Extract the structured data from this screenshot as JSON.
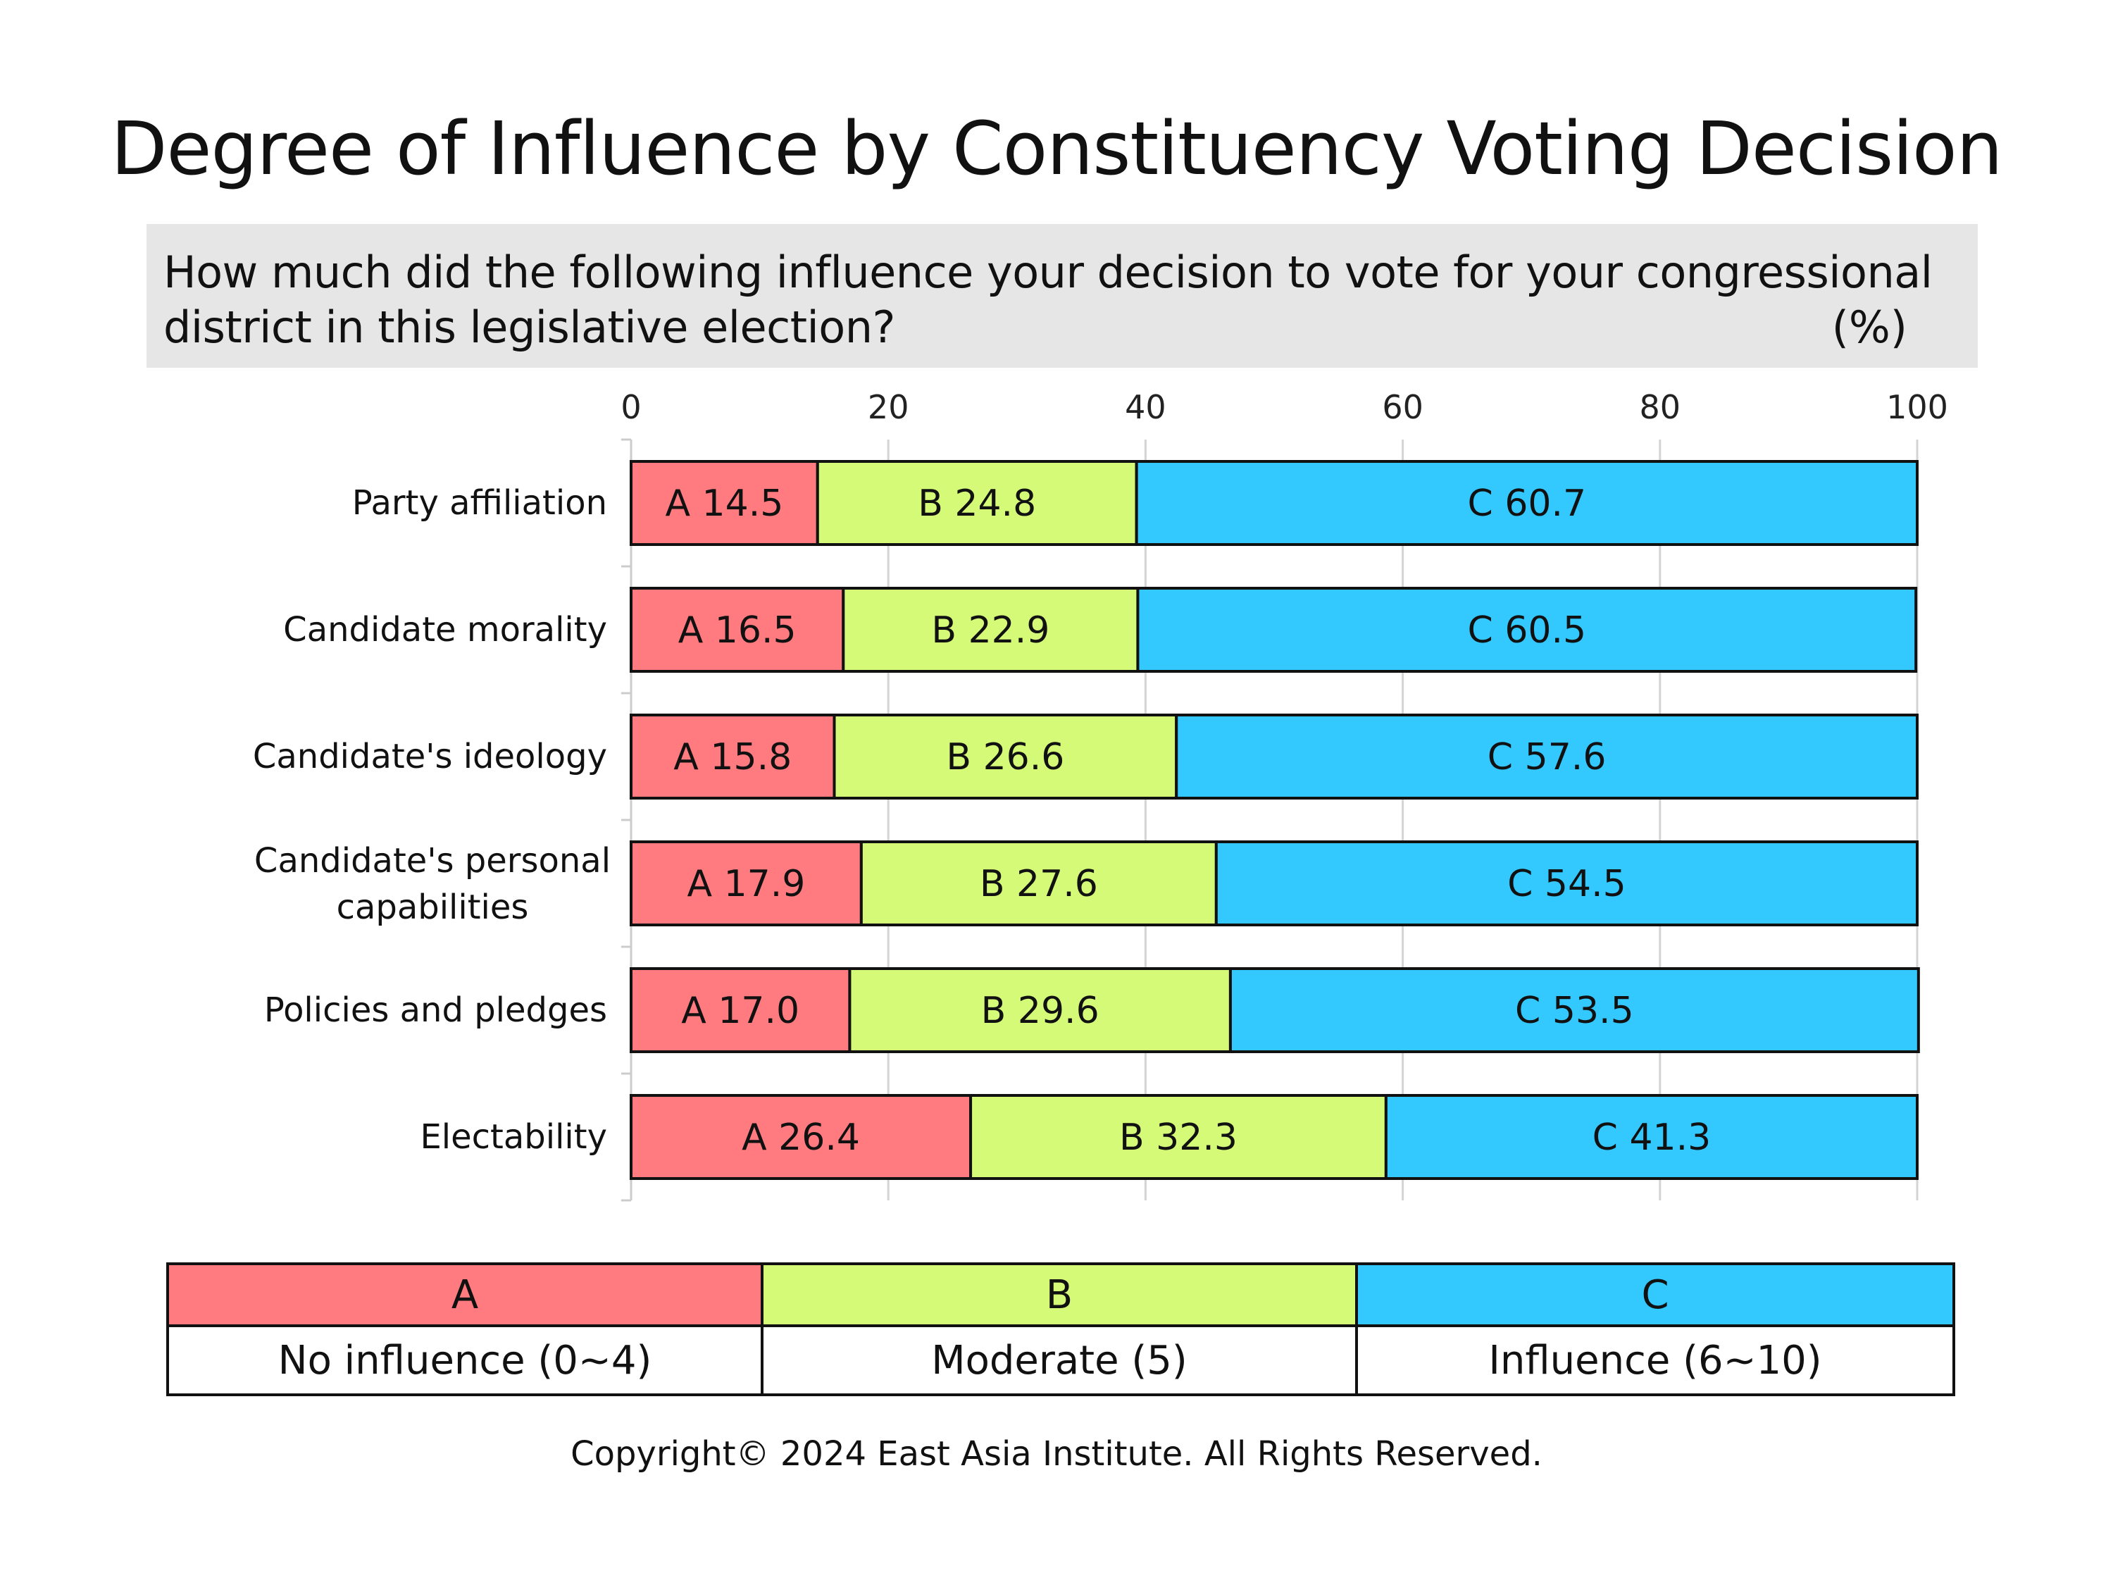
{
  "title": "Degree of Influence by Constituency Voting Decision",
  "question": "How much did the following influence your decision to vote for your congressional district in this legislative election?",
  "unit_label": "(%)",
  "legend": [
    {
      "key": "A",
      "label": "No influence (0~4)",
      "color": "#ff7b80"
    },
    {
      "key": "B",
      "label": "Moderate (5)",
      "color": "#d4fa78"
    },
    {
      "key": "C",
      "label": "Influence (6~10)",
      "color": "#33c8fe"
    }
  ],
  "footer": "Copyright© 2024 East Asia Institute. All Rights Reserved.",
  "chart_data": {
    "type": "bar",
    "orientation": "horizontal",
    "stacked": true,
    "categories": [
      "Party affiliation",
      "Candidate morality",
      "Candidate's ideology",
      "Candidate's personal capabilities",
      "Policies and pledges",
      "Electability"
    ],
    "series": [
      {
        "name": "A",
        "color": "#ff7b80",
        "values": [
          14.5,
          16.5,
          15.8,
          17.9,
          17.0,
          26.4
        ]
      },
      {
        "name": "B",
        "color": "#d4fa78",
        "values": [
          24.8,
          22.9,
          26.6,
          27.6,
          29.6,
          32.3
        ]
      },
      {
        "name": "C",
        "color": "#33c8fe",
        "values": [
          60.7,
          60.5,
          57.6,
          54.5,
          53.5,
          41.3
        ]
      }
    ],
    "xlim": [
      0,
      100
    ],
    "xticks": [
      0,
      20,
      40,
      60,
      80,
      100
    ],
    "grid": true,
    "tick_position": "top"
  }
}
